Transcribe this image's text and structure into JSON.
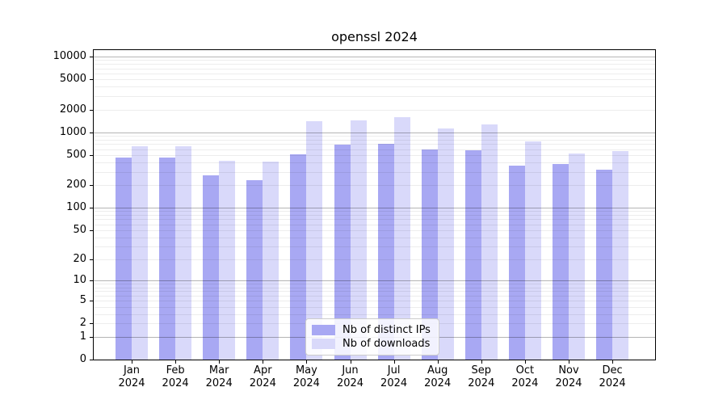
{
  "title": "openssl 2024",
  "chart_data": {
    "type": "bar",
    "title": "openssl 2024",
    "categories": [
      "Jan",
      "Feb",
      "Mar",
      "Apr",
      "May",
      "Jun",
      "Jul",
      "Aug",
      "Sep",
      "Oct",
      "Nov",
      "Dec"
    ],
    "year": "2024",
    "series": [
      {
        "name": "Nb of distinct IPs",
        "color": "#a8a8f3",
        "values": [
          460,
          460,
          270,
          230,
          510,
          690,
          700,
          590,
          580,
          360,
          380,
          320
        ]
      },
      {
        "name": "Nb of downloads",
        "color": "#d9d9fa",
        "values": [
          650,
          650,
          420,
          410,
          1400,
          1430,
          1590,
          1130,
          1270,
          760,
          530,
          570
        ]
      }
    ],
    "y_axis": {
      "scale": "log1p",
      "ticks": [
        0,
        1,
        2,
        5,
        10,
        20,
        50,
        100,
        200,
        500,
        1000,
        2000,
        5000,
        10000
      ],
      "range": [
        0,
        13000
      ]
    },
    "x_axis": {
      "tick_label_format": "Month over Year, two lines"
    },
    "grid": true,
    "grid_major_color": "#b5b5b5",
    "grid_minor_color": "#ebebeb",
    "legend_position": "lower center",
    "background_color": "#ffffff"
  }
}
